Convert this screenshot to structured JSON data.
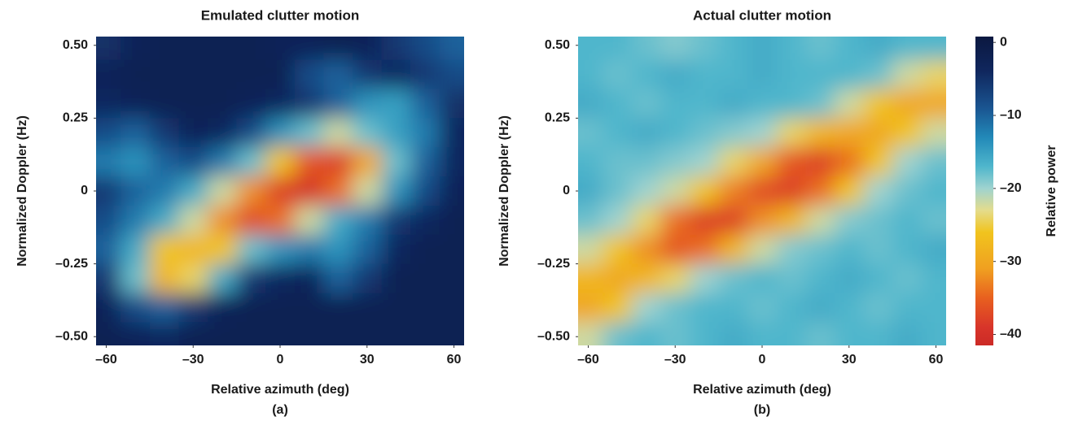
{
  "chart_data": [
    {
      "type": "heatmap",
      "title": "Emulated clutter motion",
      "xlabel": "Relative azimuth (deg)",
      "ylabel": "Normalized Doppler (Hz)",
      "caption": "(a)",
      "x": [
        -60,
        -50,
        -40,
        -30,
        -20,
        -10,
        0,
        10,
        20,
        30,
        40,
        50,
        60
      ],
      "y": [
        0.5,
        0.4,
        0.3,
        0.2,
        0.1,
        0,
        -0.1,
        -0.2,
        -0.3,
        -0.4,
        -0.5
      ],
      "z": [
        [
          -5,
          -3,
          -2,
          -2,
          -2,
          -2,
          -3,
          -3,
          -2,
          -3,
          -6,
          -8,
          -10
        ],
        [
          -3,
          -2,
          -2,
          -2,
          -2,
          -2,
          -2,
          -8,
          -10,
          -6,
          -4,
          -6,
          -8
        ],
        [
          -4,
          -3,
          -2,
          -2,
          -2,
          -3,
          -4,
          -6,
          -10,
          -14,
          -15,
          -10,
          -5
        ],
        [
          -8,
          -10,
          -6,
          -3,
          -4,
          -8,
          -14,
          -18,
          -22,
          -18,
          -15,
          -12,
          -4
        ],
        [
          -12,
          -14,
          -10,
          -8,
          -12,
          -18,
          -26,
          -36,
          -38,
          -30,
          -18,
          -10,
          -4
        ],
        [
          -6,
          -10,
          -12,
          -16,
          -22,
          -32,
          -38,
          -40,
          -34,
          -22,
          -14,
          -8,
          -3
        ],
        [
          -8,
          -12,
          -16,
          -22,
          -32,
          -37,
          -34,
          -22,
          -16,
          -12,
          -6,
          -4,
          -2
        ],
        [
          -10,
          -16,
          -26,
          -28,
          -26,
          -18,
          -14,
          -12,
          -14,
          -10,
          -4,
          -2,
          -2
        ],
        [
          -6,
          -18,
          -28,
          -24,
          -16,
          -6,
          -4,
          -3,
          -10,
          -6,
          -2,
          -2,
          -2
        ],
        [
          -3,
          -8,
          -10,
          -6,
          -3,
          -2,
          -2,
          -2,
          -2,
          -2,
          -2,
          -2,
          -2
        ],
        [
          -2,
          -3,
          -4,
          -2,
          -2,
          -2,
          -2,
          -2,
          -2,
          -2,
          -2,
          -2,
          -2
        ]
      ],
      "xlim": [
        -63.5,
        63.5
      ],
      "xticks": [
        {
          "value": -60,
          "label": "–60"
        },
        {
          "value": -30,
          "label": "–30"
        },
        0,
        30,
        60
      ],
      "ylim": [
        -0.53,
        0.53
      ],
      "yticks": [
        {
          "value": 0.5,
          "label": "0.50"
        },
        {
          "value": 0.25,
          "label": "0.25"
        },
        0,
        {
          "value": -0.25,
          "label": "–0.25"
        },
        {
          "value": -0.5,
          "label": "–0.50"
        }
      ]
    },
    {
      "type": "heatmap",
      "title": "Actual clutter motion",
      "xlabel": "Relative azimuth (deg)",
      "ylabel": "Normalized Doppler (Hz)",
      "caption": "(b)",
      "x": [
        -60,
        -50,
        -40,
        -30,
        -20,
        -10,
        0,
        10,
        20,
        30,
        40,
        50,
        60
      ],
      "y": [
        0.5,
        0.4,
        0.3,
        0.2,
        0.1,
        0,
        -0.1,
        -0.2,
        -0.3,
        -0.4,
        -0.5
      ],
      "z": [
        [
          -17,
          -17,
          -18,
          -19,
          -18,
          -17,
          -16,
          -17,
          -18,
          -17,
          -16,
          -17,
          -17
        ],
        [
          -17,
          -18,
          -17,
          -16,
          -17,
          -17,
          -16,
          -17,
          -17,
          -17,
          -18,
          -22,
          -24
        ],
        [
          -16,
          -17,
          -18,
          -17,
          -17,
          -16,
          -17,
          -17,
          -18,
          -22,
          -26,
          -30,
          -30
        ],
        [
          -18,
          -17,
          -16,
          -17,
          -18,
          -19,
          -20,
          -24,
          -28,
          -30,
          -30,
          -26,
          -22
        ],
        [
          -17,
          -18,
          -18,
          -19,
          -20,
          -24,
          -30,
          -36,
          -38,
          -34,
          -26,
          -20,
          -18
        ],
        [
          -16,
          -18,
          -20,
          -22,
          -26,
          -33,
          -37,
          -38,
          -34,
          -26,
          -20,
          -18,
          -17
        ],
        [
          -18,
          -20,
          -24,
          -34,
          -38,
          -38,
          -32,
          -28,
          -22,
          -19,
          -18,
          -17,
          -18
        ],
        [
          -22,
          -26,
          -32,
          -36,
          -34,
          -28,
          -22,
          -19,
          -18,
          -17,
          -18,
          -17,
          -16
        ],
        [
          -28,
          -30,
          -28,
          -24,
          -20,
          -18,
          -17,
          -18,
          -17,
          -16,
          -17,
          -18,
          -17
        ],
        [
          -30,
          -26,
          -20,
          -18,
          -17,
          -17,
          -18,
          -17,
          -16,
          -17,
          -18,
          -17,
          -17
        ],
        [
          -22,
          -18,
          -17,
          -18,
          -17,
          -16,
          -17,
          -17,
          -18,
          -17,
          -17,
          -16,
          -17
        ]
      ],
      "xlim": [
        -63.5,
        63.5
      ],
      "xticks": [
        {
          "value": -60,
          "label": "–60"
        },
        {
          "value": -30,
          "label": "–30"
        },
        0,
        30,
        60
      ],
      "ylim": [
        -0.53,
        0.53
      ],
      "yticks": [
        {
          "value": 0.5,
          "label": "0.50"
        },
        {
          "value": 0.25,
          "label": "0.25"
        },
        0,
        {
          "value": -0.25,
          "label": "–0.25"
        },
        {
          "value": -0.5,
          "label": "–0.50"
        }
      ],
      "colorbar": {
        "label": "Relative power",
        "lim": [
          -41.5,
          0.8
        ],
        "ticks": [
          0,
          {
            "value": -10,
            "label": "–10"
          },
          {
            "value": -20,
            "label": "–20"
          },
          {
            "value": -30,
            "label": "–30"
          },
          {
            "value": -40,
            "label": "–40"
          }
        ],
        "colorscale": [
          [
            0.8,
            "#0b1840"
          ],
          [
            -4,
            "#10275e"
          ],
          [
            -9,
            "#1a5591"
          ],
          [
            -13,
            "#2289b8"
          ],
          [
            -17,
            "#4fb6cc"
          ],
          [
            -20,
            "#9fd3cf"
          ],
          [
            -23,
            "#e4dc8c"
          ],
          [
            -26,
            "#f1c41e"
          ],
          [
            -31,
            "#f0a020"
          ],
          [
            -35,
            "#e8601f"
          ],
          [
            -39,
            "#d8352a"
          ],
          [
            -41.5,
            "#cc2a26"
          ]
        ]
      }
    }
  ]
}
